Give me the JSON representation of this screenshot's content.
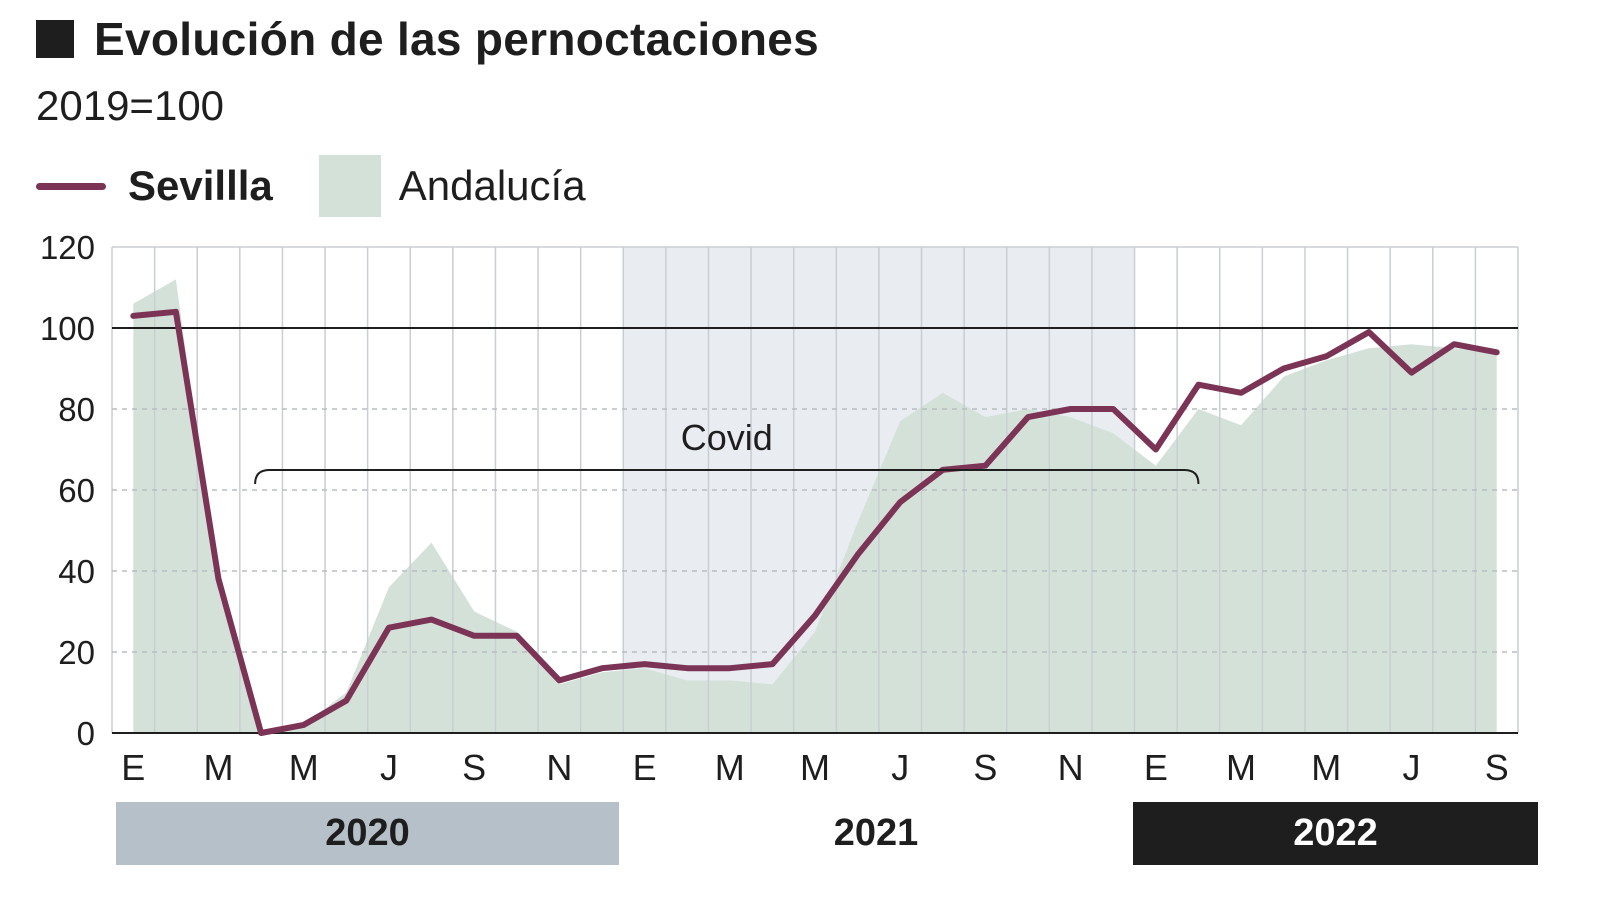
{
  "header": {
    "title": "Evolución de las pernoctaciones",
    "subtitle": "2019=100"
  },
  "legend": {
    "line_label": "Sevillla",
    "area_label": "Andalucía"
  },
  "annotation": {
    "covid_label": "Covid",
    "covid_range": [
      3,
      25
    ]
  },
  "colors": {
    "sevilla_line": "#7b3456",
    "andalucia_area": "#d4e1d9",
    "shade_2021": "#e9edf1",
    "year_2020_bg": "#b6c0c9",
    "year_2022_bg": "#1e1e1e"
  },
  "years": [
    {
      "label": "2020",
      "style": "gray"
    },
    {
      "label": "2021",
      "style": "plain"
    },
    {
      "label": "2022",
      "style": "dark"
    }
  ],
  "chart_data": {
    "type": "line",
    "title": "Evolución de las pernoctaciones",
    "subtitle": "2019=100",
    "ylim": [
      0,
      120
    ],
    "yticks": [
      0,
      20,
      40,
      60,
      80,
      100,
      120
    ],
    "reference_line": 100,
    "x_tick_labels": [
      "E",
      "M",
      "M",
      "J",
      "S",
      "N",
      "E",
      "M",
      "M",
      "J",
      "S",
      "N",
      "E",
      "M",
      "M",
      "J",
      "S"
    ],
    "x": [
      "2020-01",
      "2020-02",
      "2020-03",
      "2020-04",
      "2020-05",
      "2020-06",
      "2020-07",
      "2020-08",
      "2020-09",
      "2020-10",
      "2020-11",
      "2020-12",
      "2021-01",
      "2021-02",
      "2021-03",
      "2021-04",
      "2021-05",
      "2021-06",
      "2021-07",
      "2021-08",
      "2021-09",
      "2021-10",
      "2021-11",
      "2021-12",
      "2022-01",
      "2022-02",
      "2022-03",
      "2022-04",
      "2022-05",
      "2022-06",
      "2022-07",
      "2022-08",
      "2022-09"
    ],
    "grid": true,
    "legend_position": "top-left",
    "series": [
      {
        "name": "Sevillla",
        "kind": "line",
        "values": [
          103,
          104,
          38,
          0,
          2,
          8,
          26,
          28,
          24,
          24,
          13,
          16,
          17,
          16,
          16,
          17,
          29,
          44,
          57,
          65,
          66,
          78,
          80,
          80,
          70,
          86,
          84,
          90,
          93,
          99,
          89,
          96,
          94
        ]
      },
      {
        "name": "Andalucía",
        "kind": "area",
        "values": [
          106,
          112,
          35,
          0,
          2,
          10,
          36,
          47,
          30,
          25,
          12,
          15,
          16,
          13,
          13,
          12,
          25,
          52,
          77,
          84,
          78,
          80,
          78,
          74,
          66,
          80,
          76,
          88,
          92,
          95,
          96,
          95,
          94
        ]
      }
    ]
  }
}
